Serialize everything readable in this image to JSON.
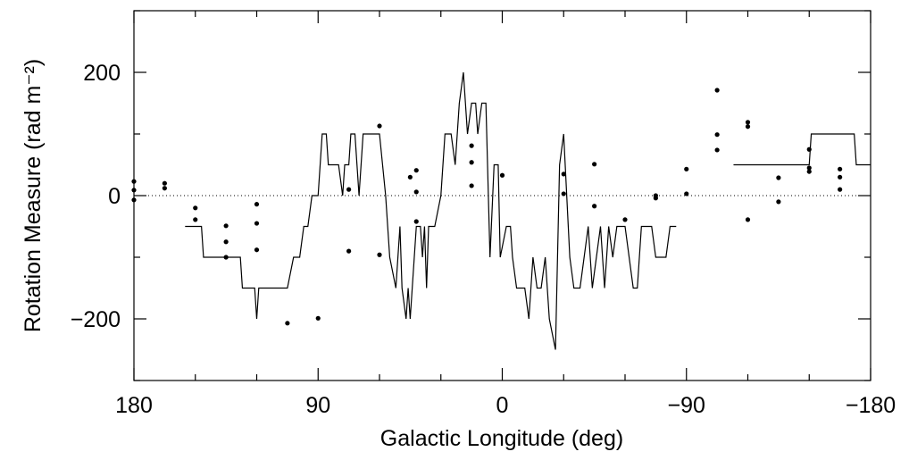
{
  "chart_data": {
    "type": "scatter",
    "xlabel": "Galactic Longitude (deg)",
    "ylabel": "Rotation Measure (rad m⁻²)",
    "xlim": [
      180,
      -180
    ],
    "ylim": [
      -300,
      300
    ],
    "xticks": [
      180,
      90,
      0,
      {
        "value": -90,
        "label": "−90"
      },
      {
        "value": -180,
        "label": "−180"
      }
    ],
    "yticks": [
      {
        "value": -200,
        "label": "−200"
      },
      0,
      200
    ],
    "xminorticks": [
      150,
      120,
      60,
      30,
      -30,
      -60,
      -120,
      -150
    ],
    "yminorticks": [
      -300,
      -100,
      100,
      300
    ],
    "hline": 0,
    "series": [
      {
        "type": "scatter",
        "color": "#000000",
        "x": [
          180,
          180,
          180,
          165,
          165,
          150,
          150,
          135,
          135,
          135,
          120,
          120,
          120,
          105,
          90,
          75,
          75,
          60,
          60,
          45,
          42,
          42,
          42,
          15,
          15,
          15,
          0,
          -30,
          -30,
          -45,
          -45,
          -60,
          -75,
          -75,
          -90,
          -90,
          -105,
          -105,
          -105,
          -120,
          -120,
          -120,
          -135,
          -135,
          -150,
          -150,
          -150,
          -165,
          -165,
          -165
        ],
        "values": [
          23,
          9,
          -7,
          20,
          12,
          -20,
          -39,
          -49,
          -75,
          -100,
          -14,
          -45,
          -88,
          -207,
          -199,
          10,
          -90,
          113,
          -96,
          30,
          41,
          6,
          -42,
          81,
          54,
          16,
          33,
          35,
          3,
          51,
          -17,
          -39,
          0,
          -4,
          43,
          3,
          171,
          99,
          74,
          119,
          112,
          -39,
          29,
          -10,
          75,
          45,
          39,
          43,
          30,
          10
        ]
      },
      {
        "type": "line",
        "color": "#000000",
        "x": [
          155,
          147,
          146,
          128,
          127,
          121,
          120,
          119,
          105,
          102,
          99,
          97,
          95,
          93,
          90,
          88,
          86,
          85,
          80,
          78,
          77,
          75,
          74,
          72,
          71,
          70,
          68,
          60,
          57,
          55,
          52,
          50,
          49,
          47,
          46,
          45,
          44,
          42,
          40,
          39,
          38,
          37,
          36,
          33,
          30,
          28,
          25,
          23,
          21,
          19,
          18,
          17,
          15,
          13,
          12,
          10,
          8,
          6,
          4,
          2,
          1,
          -2,
          -4,
          -5,
          -7,
          -11,
          -13,
          -15,
          -17,
          -19,
          -21,
          -23,
          -26,
          -28,
          -30,
          -33,
          -35,
          -38,
          -40,
          -42,
          -44,
          -46,
          -48,
          -50,
          -52,
          -54,
          -56,
          -60,
          -62,
          -64,
          -66,
          -68,
          -73,
          -75,
          -80,
          -82,
          -85
        ],
        "values": [
          -50,
          -50,
          -100,
          -100,
          -150,
          -150,
          -200,
          -150,
          -150,
          -100,
          -100,
          -50,
          -50,
          0,
          0,
          100,
          100,
          50,
          50,
          0,
          50,
          50,
          100,
          100,
          50,
          0,
          100,
          100,
          0,
          -100,
          -150,
          -50,
          -150,
          -200,
          -150,
          -200,
          -150,
          -50,
          -50,
          -100,
          -50,
          -150,
          -50,
          -50,
          0,
          100,
          100,
          50,
          150,
          200,
          150,
          100,
          150,
          150,
          100,
          150,
          150,
          -100,
          50,
          50,
          -100,
          -50,
          -50,
          -100,
          -150,
          -150,
          -200,
          -100,
          -150,
          -150,
          -100,
          -200,
          -250,
          50,
          100,
          -100,
          -150,
          -150,
          -100,
          -50,
          -150,
          -100,
          -50,
          -150,
          -50,
          -100,
          -50,
          -50,
          -100,
          -150,
          -150,
          -50,
          -50,
          -100,
          -100,
          -50,
          -50
        ]
      },
      {
        "type": "line",
        "color": "#000000",
        "x": [
          -113,
          -150,
          -151,
          -172,
          -173,
          -180
        ],
        "values": [
          50,
          50,
          100,
          100,
          50,
          50
        ]
      }
    ]
  }
}
